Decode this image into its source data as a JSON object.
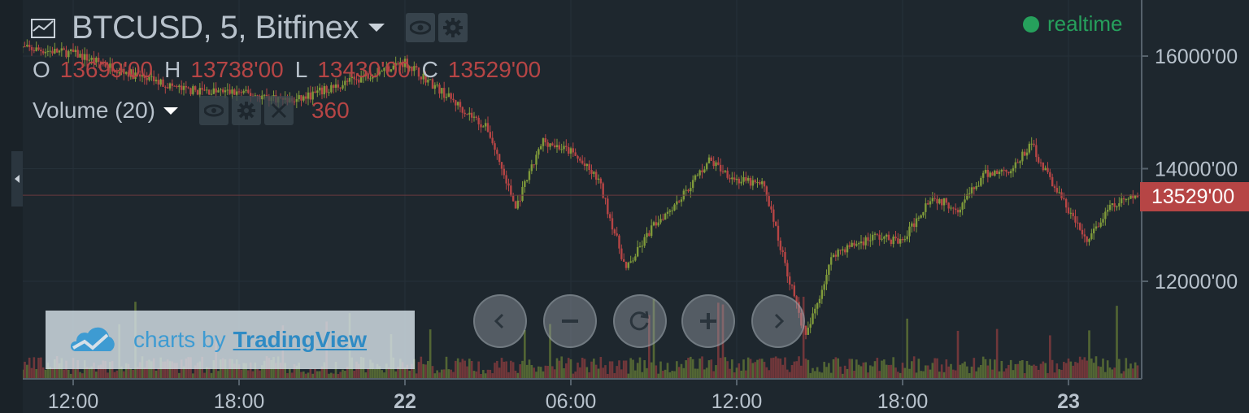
{
  "header": {
    "symbol_title": "BTCUSD, 5, Bitfinex",
    "status_label": "realtime",
    "ohlc": [
      {
        "key": "O",
        "value": "13699'00"
      },
      {
        "key": "H",
        "value": "13738'00"
      },
      {
        "key": "L",
        "value": "13430'00"
      },
      {
        "key": "C",
        "value": "13529'00"
      }
    ]
  },
  "volume_indicator": {
    "title": "Volume (20)",
    "value": "360"
  },
  "price_axis": {
    "ticks": [
      "16000'00",
      "14000'00",
      "12000'00"
    ],
    "last_price_label": "13529'00"
  },
  "time_axis": {
    "ticks": [
      "12:00",
      "18:00",
      "22",
      "06:00",
      "12:00",
      "18:00",
      "23"
    ]
  },
  "watermark": {
    "prefix": "charts by",
    "brand": "TradingView"
  },
  "navigation": {
    "buttons": [
      "scroll-left",
      "zoom-out",
      "reset",
      "zoom-in",
      "scroll-right"
    ]
  },
  "colors": {
    "background": "#1e272e",
    "up": "#7f9a3a",
    "down": "#b64545",
    "status": "#26a05c",
    "accent": "#3e9bd2"
  },
  "chart_data": {
    "type": "line",
    "title": "BTCUSD, 5, Bitfinex",
    "ylim": [
      10300,
      16500
    ],
    "y_ticks": [
      12000,
      14000,
      16000
    ],
    "x_ticks": [
      "12:00",
      "18:00",
      "22",
      "06:00",
      "12:00",
      "18:00",
      "23"
    ],
    "series": [
      {
        "name": "BTCUSD",
        "x": [
          "21 10:00",
          "21 12:00",
          "21 14:00",
          "21 16:00",
          "21 18:00",
          "21 20:00",
          "22 00:00",
          "22 02:00",
          "22 03:00",
          "22 04:00",
          "22 05:00",
          "22 06:00",
          "22 07:00",
          "22 08:00",
          "22 09:00",
          "22 10:00",
          "22 11:00",
          "22 12:00",
          "22 13:00",
          "22 13:45",
          "22 14:30",
          "22 15:30",
          "22 17:00",
          "22 18:00",
          "22 19:00",
          "22 20:00",
          "22 21:00",
          "22 22:00",
          "22 22:40",
          "22 23:00",
          "23 00:40",
          "23 01:30",
          "23 02:30"
        ],
        "values": [
          16150,
          16050,
          15700,
          15400,
          15350,
          15200,
          15900,
          15100,
          14700,
          13300,
          14500,
          14300,
          13800,
          12200,
          13000,
          13500,
          14150,
          13800,
          13700,
          12300,
          11000,
          12500,
          12800,
          12700,
          13500,
          13300,
          13900,
          14000,
          14450,
          14100,
          12700,
          13300,
          13529
        ]
      }
    ]
  }
}
